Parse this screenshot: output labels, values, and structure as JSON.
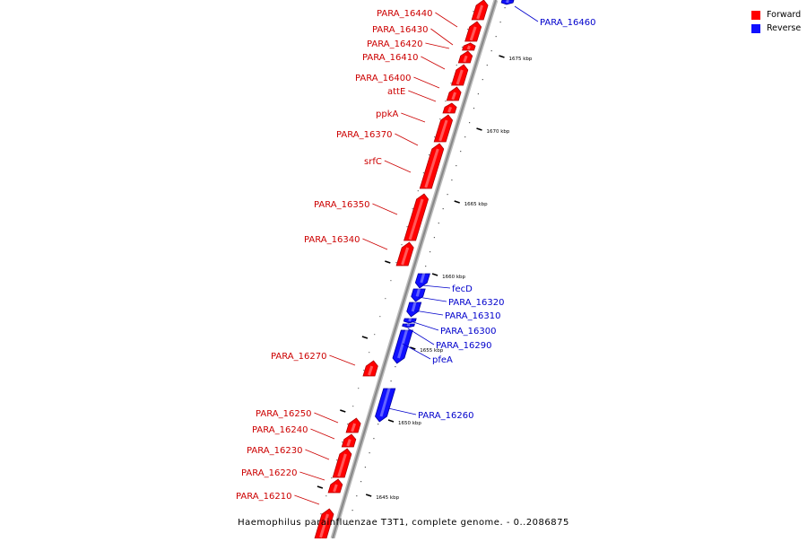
{
  "caption": "Haemophilus parainfluenzae T3T1, complete genome. - 0..2086875",
  "legend": [
    {
      "label": "Forward",
      "color": "#ff0000"
    },
    {
      "label": "Reverse",
      "color": "#1010ff"
    }
  ],
  "colors": {
    "forward": "#ff0000",
    "reverse": "#1010ff",
    "backbone": "#888888",
    "forward_label": "#cc0000",
    "reverse_label": "#0000cc"
  },
  "ticks": [
    "1645 kbp",
    "1650 kbp",
    "1655 kbp",
    "1660 kbp",
    "1665 kbp",
    "1670 kbp",
    "1675 kbp"
  ],
  "genes": [
    {
      "name": "PARA_16440",
      "strand": "forward"
    },
    {
      "name": "PARA_16430",
      "strand": "forward"
    },
    {
      "name": "PARA_16420",
      "strand": "forward"
    },
    {
      "name": "PARA_16410",
      "strand": "forward"
    },
    {
      "name": "PARA_16400",
      "strand": "forward"
    },
    {
      "name": "attE",
      "strand": "forward"
    },
    {
      "name": "ppkA",
      "strand": "forward"
    },
    {
      "name": "PARA_16370",
      "strand": "forward"
    },
    {
      "name": "srfC",
      "strand": "forward"
    },
    {
      "name": "PARA_16350",
      "strand": "forward"
    },
    {
      "name": "PARA_16340",
      "strand": "forward"
    },
    {
      "name": "PARA_16270",
      "strand": "forward"
    },
    {
      "name": "PARA_16250",
      "strand": "forward"
    },
    {
      "name": "PARA_16240",
      "strand": "forward"
    },
    {
      "name": "PARA_16230",
      "strand": "forward"
    },
    {
      "name": "PARA_16220",
      "strand": "forward"
    },
    {
      "name": "PARA_16210",
      "strand": "forward"
    },
    {
      "name": "PARA_16460",
      "strand": "reverse"
    },
    {
      "name": "fecD",
      "strand": "reverse"
    },
    {
      "name": "PARA_16320",
      "strand": "reverse"
    },
    {
      "name": "PARA_16310",
      "strand": "reverse"
    },
    {
      "name": "PARA_16300",
      "strand": "reverse"
    },
    {
      "name": "PARA_16290",
      "strand": "reverse"
    },
    {
      "name": "pfeA",
      "strand": "reverse"
    },
    {
      "name": "PARA_16260",
      "strand": "reverse"
    }
  ]
}
